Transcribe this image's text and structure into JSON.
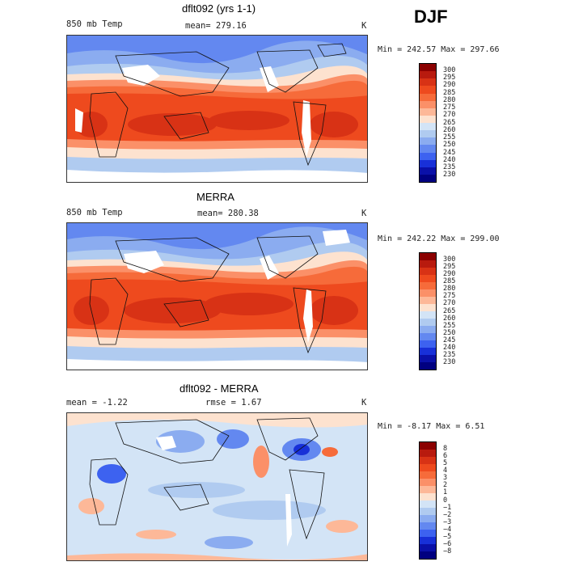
{
  "season": "DJF",
  "panels": [
    {
      "title": "dflt092 (yrs 1-1)",
      "left_label": "850 mb Temp",
      "center_label": "mean= 279.16",
      "unit": "K",
      "minmax": "Min = 242.57 Max = 297.66"
    },
    {
      "title": "MERRA",
      "left_label": "850 mb Temp",
      "center_label": "mean= 280.38",
      "unit": "K",
      "minmax": "Min = 242.22 Max = 299.00"
    },
    {
      "title": "dflt092 - MERRA",
      "left_label": "mean =   -1.22",
      "center_label": "rmse =    1.67",
      "unit": "K",
      "minmax": "Min =  -8.17 Max =   6.51"
    }
  ],
  "temp_levels": [
    "300",
    "295",
    "290",
    "285",
    "280",
    "275",
    "270",
    "265",
    "260",
    "255",
    "250",
    "245",
    "240",
    "235",
    "230"
  ],
  "temp_colors": [
    "#8b0000",
    "#b81a0e",
    "#d83215",
    "#ee4a1e",
    "#f66b3a",
    "#fb9068",
    "#fdb898",
    "#fde2cf",
    "#d3e4f6",
    "#b0cbf0",
    "#8bacf0",
    "#6388f0",
    "#3d62f0",
    "#1830d8",
    "#0a10a8",
    "#000080"
  ],
  "diff_levels": [
    "8",
    "6",
    "5",
    "4",
    "3",
    "2",
    "1",
    "0",
    "−1",
    "−2",
    "−3",
    "−4",
    "−5",
    "−6",
    "−8"
  ],
  "diff_colors": [
    "#8b0000",
    "#b81a0e",
    "#d83215",
    "#ee4a1e",
    "#f66b3a",
    "#fb9068",
    "#fdb898",
    "#fde2cf",
    "#d3e4f6",
    "#b0cbf0",
    "#8bacf0",
    "#6388f0",
    "#3d62f0",
    "#1830d8",
    "#0a10a8",
    "#000080"
  ]
}
